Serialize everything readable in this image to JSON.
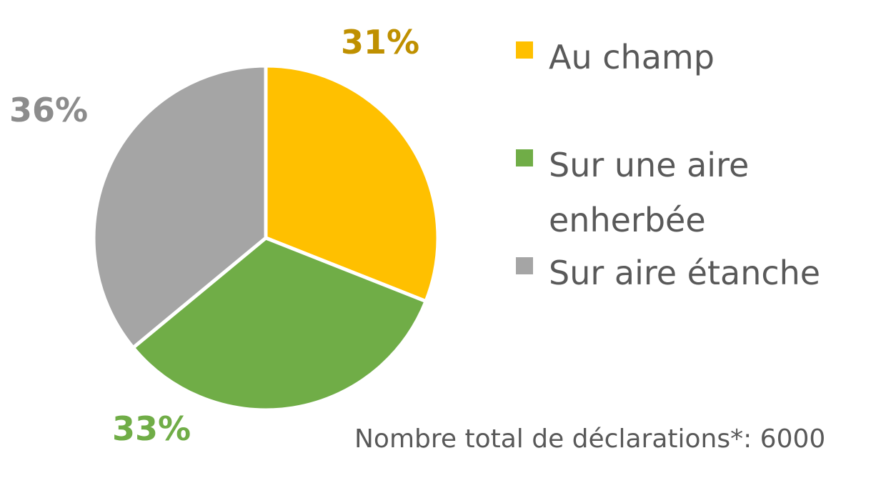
{
  "chart_data": {
    "type": "pie",
    "slices": [
      {
        "label": "Au champ",
        "value": 31,
        "display": "31%",
        "color": "#FFC000",
        "label_color": "#BF9000"
      },
      {
        "label": "Sur une aire enherbée",
        "value": 33,
        "display": "33%",
        "color": "#70AD47",
        "label_color": "#70AD47"
      },
      {
        "label": "Sur aire étanche",
        "value": 36,
        "display": "36%",
        "color": "#A5A5A5",
        "label_color": "#8C8C8C"
      }
    ],
    "legend": {
      "placement": "right",
      "lines": [
        [
          "Au champ"
        ],
        [
          "Sur une aire",
          "enherbée"
        ],
        [
          "Sur aire étanche"
        ]
      ]
    },
    "note": "Nombre total de déclarations*: 6000"
  }
}
